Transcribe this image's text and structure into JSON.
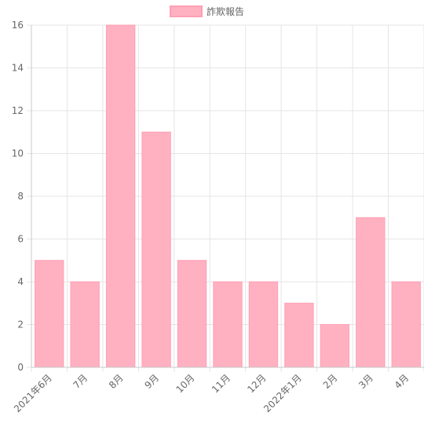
{
  "chart_data": {
    "type": "bar",
    "categories": [
      "2021年6月",
      "7月",
      "8月",
      "9月",
      "10月",
      "11月",
      "12月",
      "2022年1月",
      "2月",
      "3月",
      "4月"
    ],
    "series": [
      {
        "name": "詐欺報告",
        "values": [
          5,
          4,
          16,
          11,
          5,
          4,
          4,
          3,
          2,
          7,
          4
        ]
      }
    ],
    "ylim": [
      0,
      16
    ],
    "yticks": [
      0,
      2,
      4,
      6,
      8,
      10,
      12,
      14,
      16
    ],
    "grid": true,
    "legend": "top-center",
    "colors": {
      "bar_fill": "#ffb1c1",
      "bar_border": "#ff9fb4",
      "grid": "#e5e5e5",
      "axis": "#c8c8c8",
      "text": "#666666"
    }
  }
}
